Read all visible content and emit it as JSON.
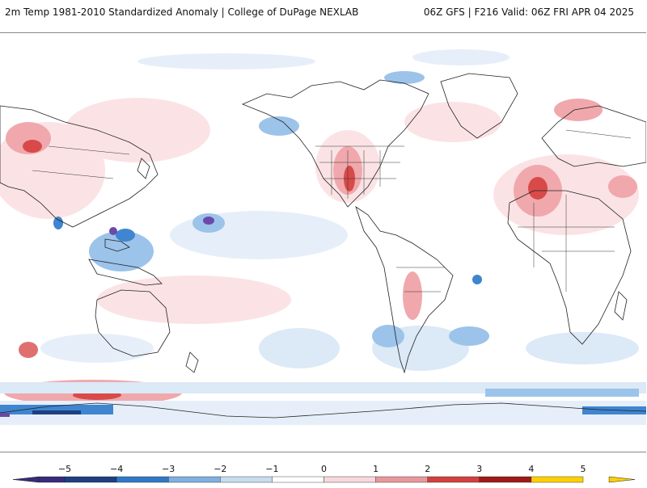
{
  "header": {
    "title_left": "2m Temp 1981-2010 Standardized Anomaly | College of DuPage NEXLAB",
    "title_right": "06Z GFS | F216 Valid: 06Z FRI APR 04 2025"
  },
  "legend": {
    "ticks": [
      "−5",
      "−4",
      "−3",
      "−2",
      "−1",
      "0",
      "1",
      "2",
      "3",
      "4",
      "5"
    ],
    "colors": [
      "#3a2a7a",
      "#1f3f80",
      "#2f78c8",
      "#7fb0e0",
      "#c8dcf0",
      "#ffffff",
      "#f8d8dc",
      "#e8989c",
      "#d24040",
      "#a01818",
      "#ffd000"
    ]
  },
  "palette": {
    "warm_light": "#fbe3e5",
    "warm_mid": "#f0a8ac",
    "warm_strong": "#d84a4a",
    "warm_dark": "#9a1a1a",
    "cool_light": "#dce9f6",
    "cool_mid": "#9cc3ea",
    "cool_strong": "#3f85d0",
    "cool_dark": "#1f3f80",
    "extreme_cool": "#6a4aa8",
    "coast": "#222222"
  }
}
